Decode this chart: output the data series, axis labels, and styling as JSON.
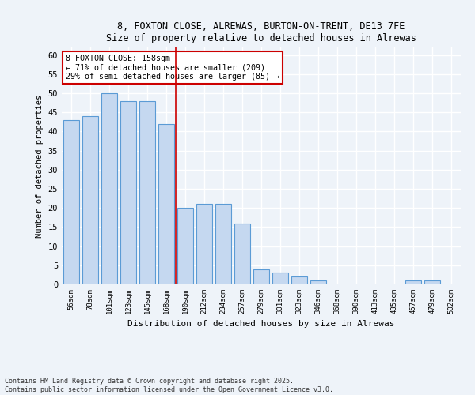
{
  "title1": "8, FOXTON CLOSE, ALREWAS, BURTON-ON-TRENT, DE13 7FE",
  "title2": "Size of property relative to detached houses in Alrewas",
  "xlabel": "Distribution of detached houses by size in Alrewas",
  "ylabel": "Number of detached properties",
  "categories": [
    "56sqm",
    "78sqm",
    "101sqm",
    "123sqm",
    "145sqm",
    "168sqm",
    "190sqm",
    "212sqm",
    "234sqm",
    "257sqm",
    "279sqm",
    "301sqm",
    "323sqm",
    "346sqm",
    "368sqm",
    "390sqm",
    "413sqm",
    "435sqm",
    "457sqm",
    "479sqm",
    "502sqm"
  ],
  "values": [
    43,
    44,
    50,
    48,
    48,
    42,
    20,
    21,
    21,
    16,
    4,
    3,
    2,
    1,
    0,
    0,
    0,
    0,
    1,
    1,
    0
  ],
  "bar_color": "#c5d8f0",
  "bar_edge_color": "#5b9bd5",
  "vline_x": 5.5,
  "vline_color": "#cc0000",
  "annotation_text": "8 FOXTON CLOSE: 158sqm\n← 71% of detached houses are smaller (209)\n29% of semi-detached houses are larger (85) →",
  "annotation_box_color": "#ffffff",
  "annotation_box_edge": "#cc0000",
  "ylim": [
    0,
    62
  ],
  "yticks": [
    0,
    5,
    10,
    15,
    20,
    25,
    30,
    35,
    40,
    45,
    50,
    55,
    60
  ],
  "footer1": "Contains HM Land Registry data © Crown copyright and database right 2025.",
  "footer2": "Contains public sector information licensed under the Open Government Licence v3.0.",
  "bg_color": "#eef3f9",
  "grid_color": "#ffffff"
}
